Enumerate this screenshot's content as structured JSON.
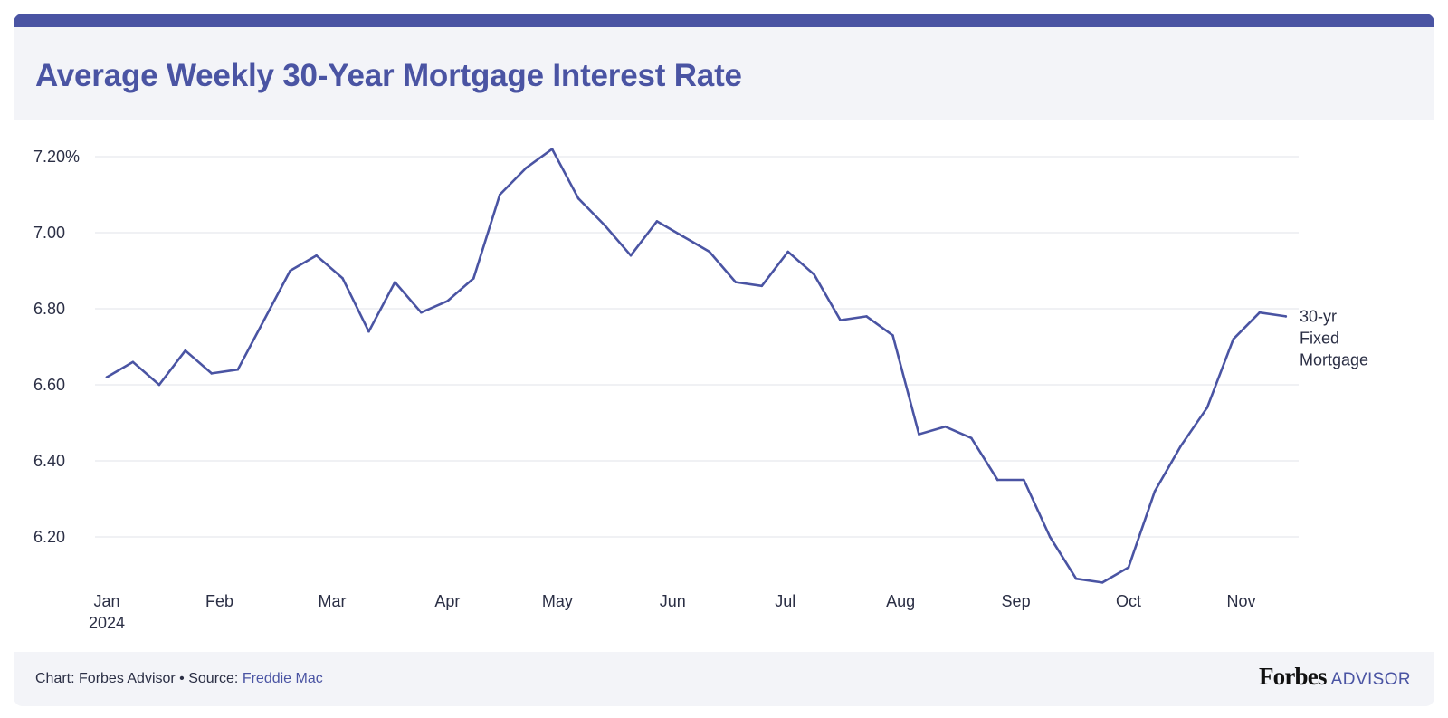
{
  "title": "Average Weekly 30-Year Mortgage Interest Rate",
  "footer": {
    "prefix": "Chart: Forbes Advisor • Source: ",
    "source_link": "Freddie Mac",
    "brand_name": "Forbes",
    "brand_suffix": "ADVISOR"
  },
  "colors": {
    "accent": "#4a54a3",
    "line": "#4a54a3",
    "grid": "#e2e3e8",
    "header_bg": "#f3f4f8",
    "text": "#2b2f45"
  },
  "chart_data": {
    "type": "line",
    "title": "Average Weekly 30-Year Mortgage Interest Rate",
    "xlabel": "",
    "ylabel": "",
    "ylim": [
      6.08,
      7.22
    ],
    "grid": true,
    "legend_placement": "inline-right",
    "y_ticks": [
      {
        "value": 7.2,
        "label": "7.20%"
      },
      {
        "value": 7.0,
        "label": "7.00"
      },
      {
        "value": 6.8,
        "label": "6.80"
      },
      {
        "value": 6.6,
        "label": "6.60"
      },
      {
        "value": 6.4,
        "label": "6.40"
      },
      {
        "value": 6.2,
        "label": "6.20"
      }
    ],
    "x_ticks": [
      {
        "week": 0,
        "label": "Jan",
        "sublabel": "2024"
      },
      {
        "week": 4.3,
        "label": "Feb",
        "sublabel": ""
      },
      {
        "week": 8.6,
        "label": "Mar",
        "sublabel": ""
      },
      {
        "week": 13.0,
        "label": "Apr",
        "sublabel": ""
      },
      {
        "week": 17.2,
        "label": "May",
        "sublabel": ""
      },
      {
        "week": 21.6,
        "label": "Jun",
        "sublabel": ""
      },
      {
        "week": 25.9,
        "label": "Jul",
        "sublabel": ""
      },
      {
        "week": 30.3,
        "label": "Aug",
        "sublabel": ""
      },
      {
        "week": 34.7,
        "label": "Sep",
        "sublabel": ""
      },
      {
        "week": 39.0,
        "label": "Oct",
        "sublabel": ""
      },
      {
        "week": 43.3,
        "label": "Nov",
        "sublabel": ""
      }
    ],
    "series": [
      {
        "name": "30-yr Fixed Mortgage",
        "name_lines": [
          "30-yr",
          "Fixed",
          "Mortgage"
        ],
        "values": [
          6.62,
          6.66,
          6.6,
          6.69,
          6.63,
          6.64,
          6.77,
          6.9,
          6.94,
          6.88,
          6.74,
          6.87,
          6.79,
          6.82,
          6.88,
          7.1,
          7.17,
          7.22,
          7.09,
          7.02,
          6.94,
          7.03,
          6.99,
          6.95,
          6.87,
          6.86,
          6.95,
          6.89,
          6.77,
          6.78,
          6.73,
          6.47,
          6.49,
          6.46,
          6.35,
          6.35,
          6.2,
          6.09,
          6.08,
          6.12,
          6.32,
          6.44,
          6.54,
          6.72,
          6.79,
          6.78
        ]
      }
    ]
  }
}
